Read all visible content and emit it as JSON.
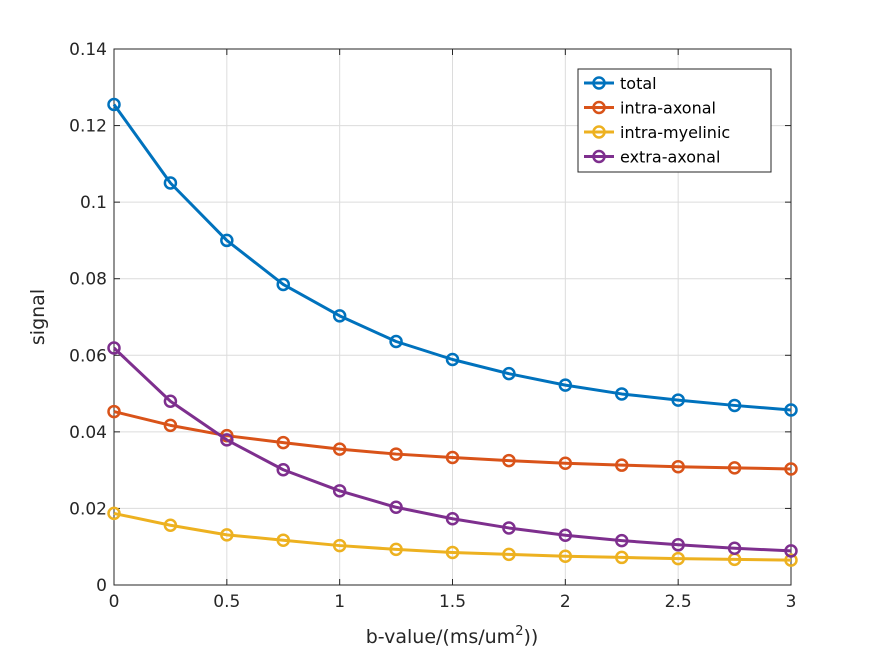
{
  "chart_data": {
    "type": "line",
    "xlabel_main": "b-value/(ms/um",
    "xlabel_sup": "2",
    "xlabel_tail": "))",
    "ylabel": "signal",
    "xlim": [
      0,
      3
    ],
    "ylim": [
      0,
      0.14
    ],
    "xticks": [
      0,
      0.5,
      1,
      1.5,
      2,
      2.5,
      3
    ],
    "xtick_labels": [
      "0",
      "0.5",
      "1",
      "1.5",
      "2",
      "2.5",
      "3"
    ],
    "yticks": [
      0,
      0.02,
      0.04,
      0.06,
      0.08,
      0.1,
      0.12,
      0.14
    ],
    "ytick_labels": [
      "0",
      "0.02",
      "0.04",
      "0.06",
      "0.08",
      "0.1",
      "0.12",
      "0.14"
    ],
    "grid": true,
    "legend_position": "top-right",
    "marker": "circle",
    "x": [
      0,
      0.25,
      0.5,
      0.75,
      1,
      1.25,
      1.5,
      1.75,
      2,
      2.25,
      2.5,
      2.75,
      3
    ],
    "series": [
      {
        "name": "total",
        "color": "#0072bd",
        "values": [
          0.1255,
          0.105,
          0.09,
          0.0785,
          0.0703,
          0.0636,
          0.0589,
          0.0552,
          0.0522,
          0.0499,
          0.0483,
          0.0469,
          0.0457
        ]
      },
      {
        "name": "intra-axonal",
        "color": "#d95319",
        "values": [
          0.0453,
          0.0417,
          0.039,
          0.0372,
          0.0355,
          0.0342,
          0.0333,
          0.0325,
          0.0318,
          0.0313,
          0.0309,
          0.0306,
          0.0303
        ]
      },
      {
        "name": "intra-myelinic",
        "color": "#edb120",
        "values": [
          0.0187,
          0.0156,
          0.0131,
          0.0117,
          0.0103,
          0.0093,
          0.0085,
          0.008,
          0.0075,
          0.0072,
          0.0069,
          0.0067,
          0.0065
        ]
      },
      {
        "name": "extra-axonal",
        "color": "#7e2f8e",
        "values": [
          0.0619,
          0.048,
          0.0379,
          0.0301,
          0.0246,
          0.0203,
          0.0173,
          0.0149,
          0.013,
          0.0116,
          0.0105,
          0.0096,
          0.0089
        ]
      }
    ]
  }
}
